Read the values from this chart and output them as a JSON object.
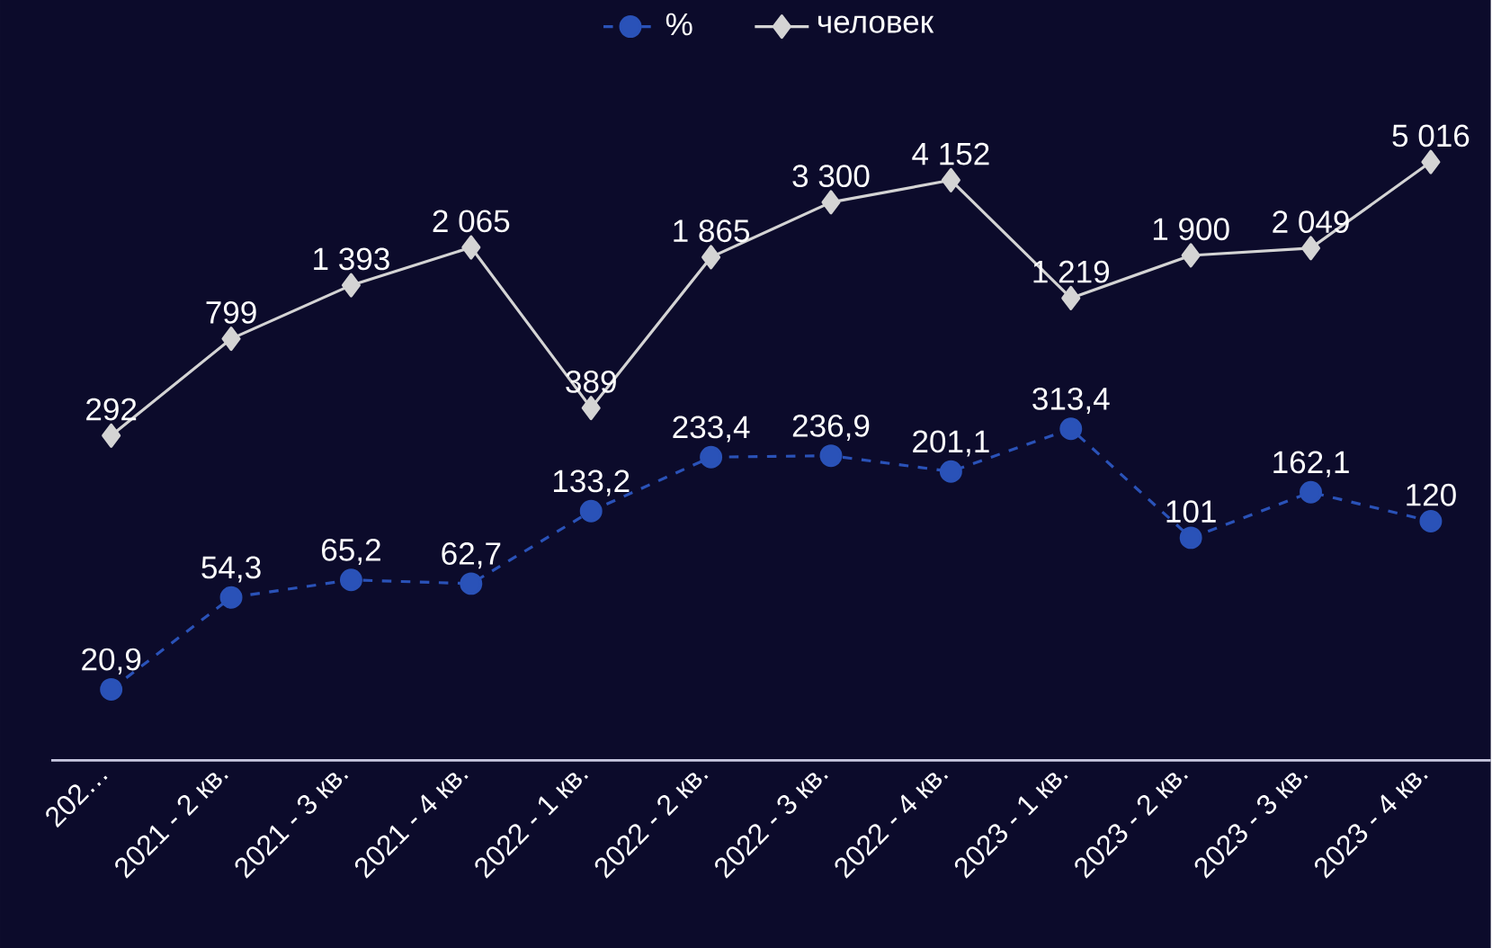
{
  "chart_data": {
    "type": "line",
    "categories": [
      "202…",
      "2021 - 2 кв.",
      "2021 - 3 кв.",
      "2021 - 4 кв.",
      "2022 - 1 кв.",
      "2022 - 2 кв.",
      "2022 - 3 кв.",
      "2022 - 4 кв.",
      "2023 - 1 кв.",
      "2023 - 2 кв.",
      "2023 - 3 кв.",
      "2023 - 4 кв."
    ],
    "series": [
      {
        "name": "%",
        "color": "#2a52b8",
        "marker": "circle",
        "line_style": "dashed",
        "values": [
          20.9,
          54.3,
          65.2,
          62.7,
          133.2,
          233.4,
          236.9,
          201.1,
          313.4,
          101,
          162.1,
          120
        ],
        "value_labels": [
          "20,9",
          "54,3",
          "65,2",
          "62,7",
          "133,2",
          "233,4",
          "236,9",
          "201,1",
          "313,4",
          "101",
          "162,1",
          "120"
        ]
      },
      {
        "name": "человек",
        "color": "#d4d4d4",
        "marker": "diamond",
        "line_style": "solid",
        "values": [
          292,
          799,
          1393,
          2065,
          389,
          1865,
          3300,
          4152,
          1219,
          1900,
          2049,
          5016
        ],
        "value_labels": [
          "292",
          "799",
          "1 393",
          "2 065",
          "389",
          "1 865",
          "3 300",
          "4 152",
          "1 219",
          "1 900",
          "2 049",
          "5 016"
        ]
      }
    ],
    "ylim": [
      10,
      27000
    ],
    "log": true,
    "legend": "top",
    "tick_labels": "x"
  }
}
